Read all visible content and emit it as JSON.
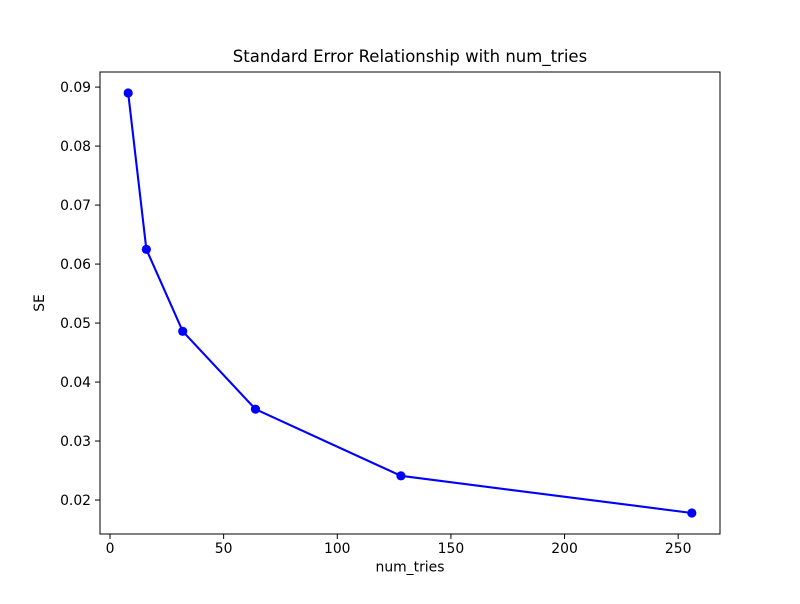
{
  "figure": {
    "background": "#ffffff",
    "plot_background": "#ffffff",
    "spine_color": "#000000",
    "text_color": "#000000"
  },
  "chart_data": {
    "type": "line",
    "title": "Standard Error Relationship with num_tries",
    "xlabel": "num_tries",
    "ylabel": "SE",
    "x": [
      8,
      16,
      32,
      64,
      128,
      256
    ],
    "y": [
      0.089,
      0.0625,
      0.0486,
      0.0354,
      0.0241,
      0.0178
    ],
    "line_color": "#0000ff",
    "marker": "circle",
    "marker_color": "#0000ff",
    "xticks": [
      0,
      50,
      100,
      150,
      200,
      250
    ],
    "yticks": [
      0.02,
      0.03,
      0.04,
      0.05,
      0.06,
      0.07,
      0.08,
      0.09
    ],
    "ytick_decimals": 2,
    "xlim": [
      -4.4,
      268.4
    ],
    "ylim": [
      0.01424,
      0.09256
    ],
    "grid": false,
    "legend_position": "none"
  }
}
